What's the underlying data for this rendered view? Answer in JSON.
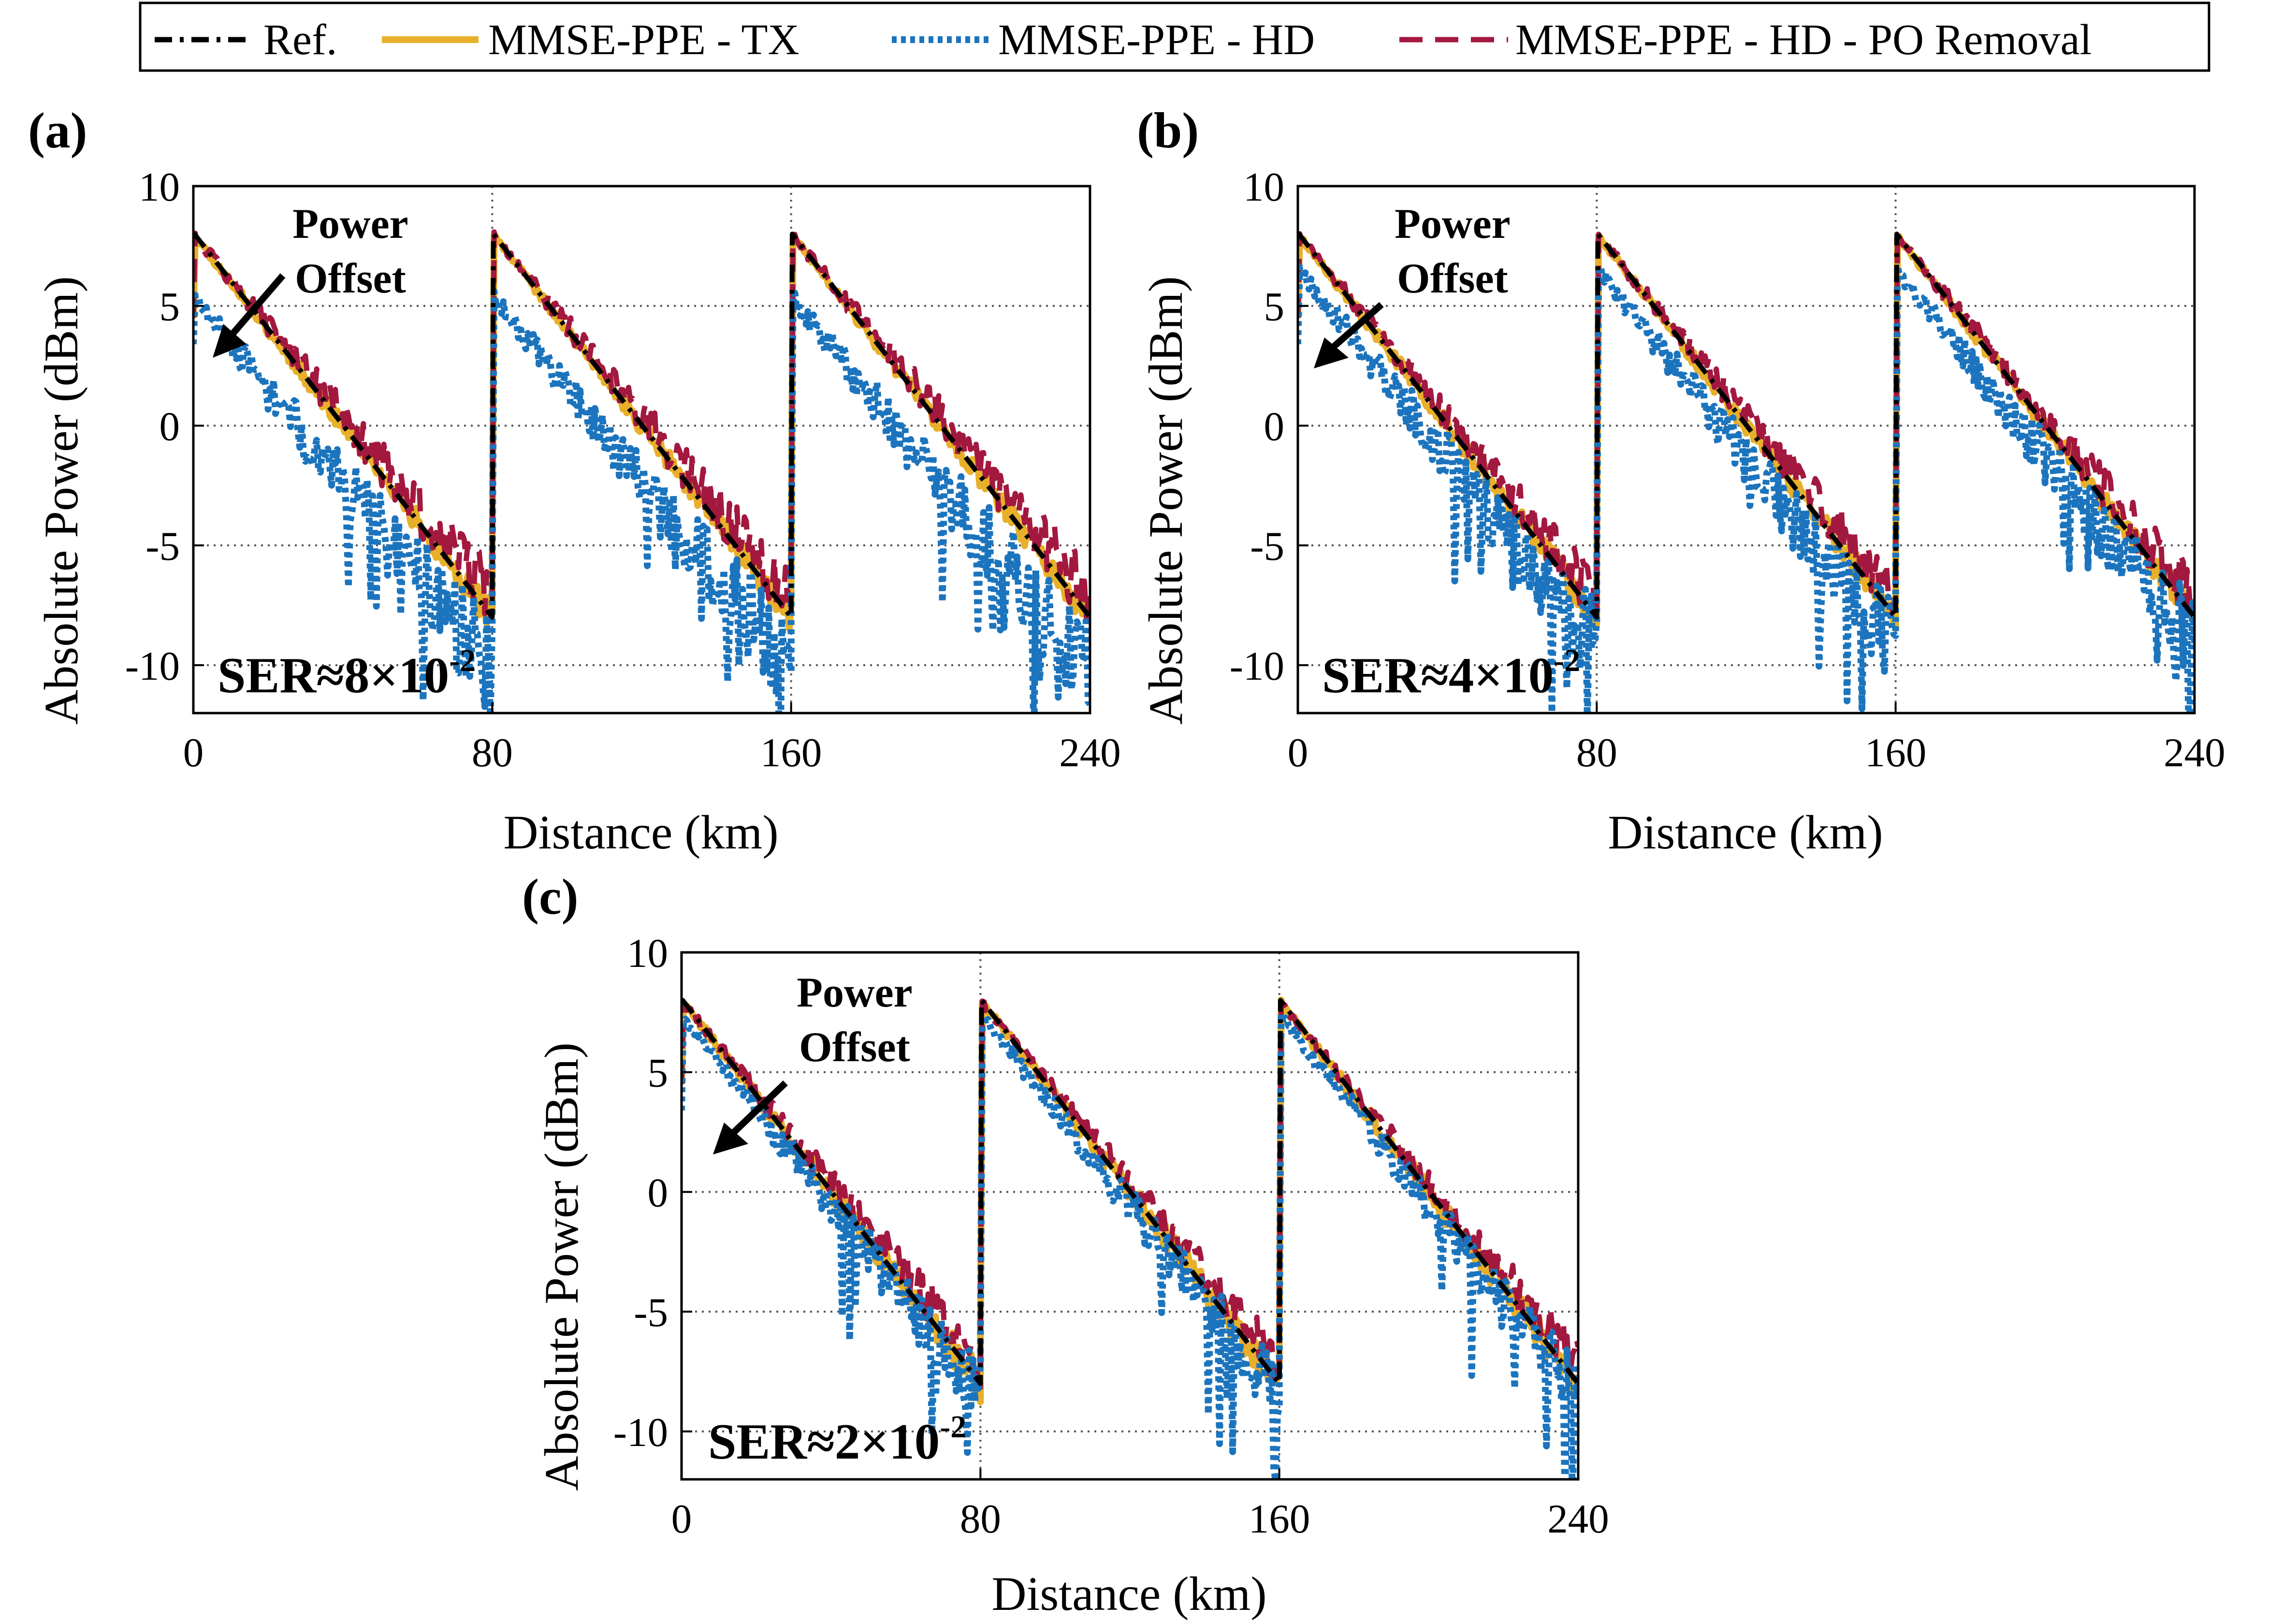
{
  "chart_data": {
    "type": "line",
    "legend": {
      "placement": "top-center",
      "entries": [
        "Ref.",
        "MMSE-PPE - TX",
        "MMSE-PPE - HD",
        "MMSE-PPE - HD - PO Removal"
      ]
    },
    "series_style": {
      "Ref.": {
        "color": "#000000",
        "dash": "dash-dot"
      },
      "MMSE-PPE - TX": {
        "color": "#e8b02a",
        "dash": "solid"
      },
      "MMSE-PPE - HD": {
        "color": "#1b74bd",
        "dash": "dotted"
      },
      "MMSE-PPE - HD - PO Removal": {
        "color": "#a3183f",
        "dash": "dashed"
      }
    },
    "panels": [
      {
        "id": "a",
        "label": "(a)",
        "xlabel": "Distance (km)",
        "ylabel": "Absolute Power (dBm)",
        "xlim": [
          0,
          240
        ],
        "ylim": [
          -12,
          10
        ],
        "xticks": [
          0,
          80,
          160,
          240
        ],
        "yticks": [
          -10,
          -5,
          0,
          5,
          10
        ],
        "grid": true,
        "annotation": {
          "line1": "Power",
          "line2": "Offset"
        },
        "ser": {
          "prefix": "SER≈8×10",
          "exponent": "-2"
        },
        "hd_offset_db": -2.6,
        "noise": {
          "seed": 11,
          "tx": 0.5,
          "hd": 1.3,
          "po": 0.9
        }
      },
      {
        "id": "b",
        "label": "(b)",
        "xlabel": "Distance (km)",
        "ylabel": "Absolute Power (dBm)",
        "xlim": [
          0,
          240
        ],
        "ylim": [
          -12,
          10
        ],
        "xticks": [
          0,
          80,
          160,
          240
        ],
        "yticks": [
          -10,
          -5,
          0,
          5,
          10
        ],
        "grid": true,
        "annotation": {
          "line1": "Power",
          "line2": "Offset"
        },
        "ser": {
          "prefix": "SER≈4×10",
          "exponent": "-2"
        },
        "hd_offset_db": -1.4,
        "noise": {
          "seed": 23,
          "tx": 0.5,
          "hd": 1.1,
          "po": 0.8
        }
      },
      {
        "id": "c",
        "label": "(c)",
        "xlabel": "Distance (km)",
        "ylabel": "Absolute Power (dBm)",
        "xlim": [
          0,
          240
        ],
        "ylim": [
          -12,
          10
        ],
        "xticks": [
          0,
          80,
          160,
          240
        ],
        "yticks": [
          -10,
          -5,
          0,
          5,
          10
        ],
        "grid": true,
        "annotation": {
          "line1": "Power",
          "line2": "Offset"
        },
        "ser": {
          "prefix": "SER≈2×10",
          "exponent": "-2"
        },
        "hd_offset_db": -0.6,
        "noise": {
          "seed": 37,
          "tx": 0.6,
          "hd": 0.8,
          "po": 0.7
        }
      }
    ],
    "reference_profile": {
      "span_km": 80,
      "launch_dbm": 8,
      "loss_db_per_km": 0.2,
      "end_dbm": -8,
      "spans": 3
    }
  }
}
